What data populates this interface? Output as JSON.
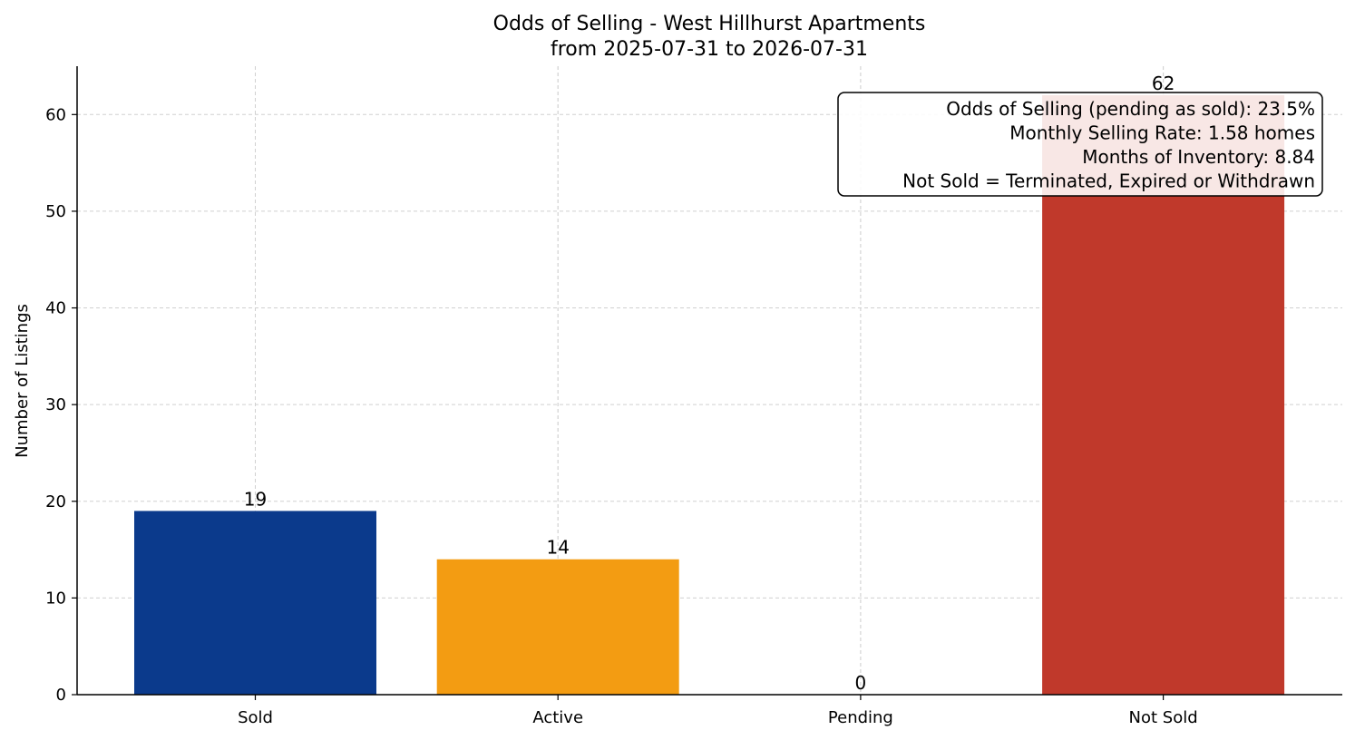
{
  "chart_data": {
    "type": "bar",
    "title": "Odds of Selling - West Hillhurst Apartments",
    "subtitle": "from 2025-07-31 to 2026-07-31",
    "xlabel": "",
    "ylabel": "Number of Listings",
    "categories": [
      "Sold",
      "Active",
      "Pending",
      "Not Sold"
    ],
    "values": [
      19,
      14,
      0,
      62
    ],
    "colors": [
      "#0b3a8c",
      "#f39c12",
      "#2e8b57",
      "#c0392b"
    ],
    "ylim": [
      0,
      65
    ],
    "yticks": [
      0,
      10,
      20,
      30,
      40,
      50,
      60
    ],
    "grid": true,
    "annotation_lines": [
      "Odds of Selling (pending as sold): 23.5%",
      "Monthly Selling Rate: 1.58 homes",
      "Months of Inventory: 8.84",
      "Not Sold = Terminated, Expired or Withdrawn"
    ],
    "annotation_placement": "top-right"
  }
}
